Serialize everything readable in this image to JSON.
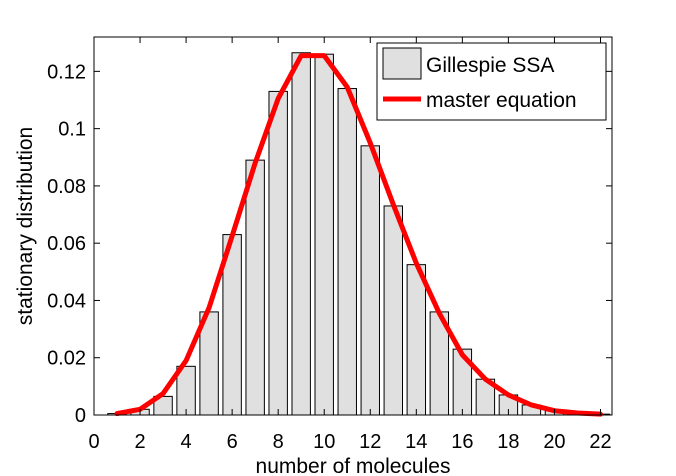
{
  "chart_data": {
    "type": "bar",
    "xlabel": "number of molecules",
    "ylabel": "stationary distribution",
    "xlim": [
      0,
      22.5
    ],
    "ylim": [
      0,
      0.132
    ],
    "xticks": [
      "0",
      "2",
      "4",
      "6",
      "8",
      "10",
      "12",
      "14",
      "16",
      "18",
      "20",
      "22"
    ],
    "yticks": [
      "0",
      "0.02",
      "0.04",
      "0.06",
      "0.08",
      "0.1",
      "0.12"
    ],
    "grid": false,
    "legend_position": "top-right",
    "series": [
      {
        "name": "Gillespie SSA",
        "kind": "bar",
        "color": "#e0e0e0",
        "x": [
          1,
          2,
          3,
          4,
          5,
          6,
          7,
          8,
          9,
          10,
          11,
          12,
          13,
          14,
          15,
          16,
          17,
          18,
          19,
          20,
          21,
          22
        ],
        "values": [
          0.0005,
          0.002,
          0.0065,
          0.017,
          0.036,
          0.063,
          0.089,
          0.113,
          0.1265,
          0.126,
          0.114,
          0.094,
          0.073,
          0.0525,
          0.036,
          0.023,
          0.0125,
          0.007,
          0.0035,
          0.0015,
          0.0007,
          0.0003
        ]
      },
      {
        "name": "master equation",
        "kind": "line",
        "color": "#ff0000",
        "x": [
          1,
          2,
          3,
          4,
          5,
          6,
          7,
          8,
          9,
          10,
          11,
          12,
          13,
          14,
          15,
          16,
          17,
          18,
          19,
          20,
          21,
          22
        ],
        "values": [
          0.0005,
          0.002,
          0.0075,
          0.019,
          0.0375,
          0.0625,
          0.088,
          0.1105,
          0.1255,
          0.1255,
          0.1145,
          0.095,
          0.0735,
          0.053,
          0.0355,
          0.021,
          0.0125,
          0.007,
          0.0035,
          0.0015,
          0.0007,
          0.0003
        ]
      }
    ]
  }
}
